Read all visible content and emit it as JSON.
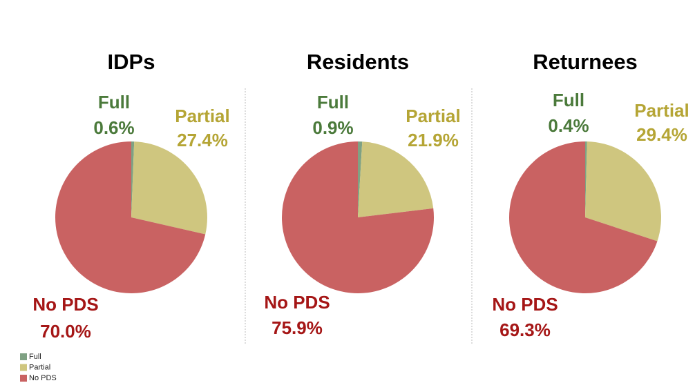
{
  "chart_data": [
    {
      "type": "pie",
      "title": "IDPs",
      "categories": [
        "Full",
        "Partial",
        "No PDS"
      ],
      "values": [
        0.6,
        27.4,
        70.0
      ],
      "value_labels": [
        "0.6%",
        "27.4%",
        "70.0%"
      ],
      "colors": [
        "#7fa183",
        "#cfc67f",
        "#c96262"
      ],
      "label_colors": [
        "#4b7a3b",
        "#b5a535",
        "#a51616"
      ],
      "legend": "bottom-left"
    },
    {
      "type": "pie",
      "title": "Residents",
      "categories": [
        "Full",
        "Partial",
        "No PDS"
      ],
      "values": [
        0.9,
        21.9,
        75.9
      ],
      "value_labels": [
        "0.9%",
        "21.9%",
        "75.9%"
      ],
      "colors": [
        "#7fa183",
        "#cfc67f",
        "#c96262"
      ],
      "label_colors": [
        "#4b7a3b",
        "#b5a535",
        "#a51616"
      ]
    },
    {
      "type": "pie",
      "title": "Returnees",
      "categories": [
        "Full",
        "Partial",
        "No PDS"
      ],
      "values": [
        0.4,
        29.4,
        69.3
      ],
      "value_labels": [
        "0.4%",
        "29.4%",
        "69.3%"
      ],
      "colors": [
        "#7fa183",
        "#cfc67f",
        "#c96262"
      ],
      "label_colors": [
        "#4b7a3b",
        "#b5a535",
        "#a51616"
      ]
    }
  ]
}
